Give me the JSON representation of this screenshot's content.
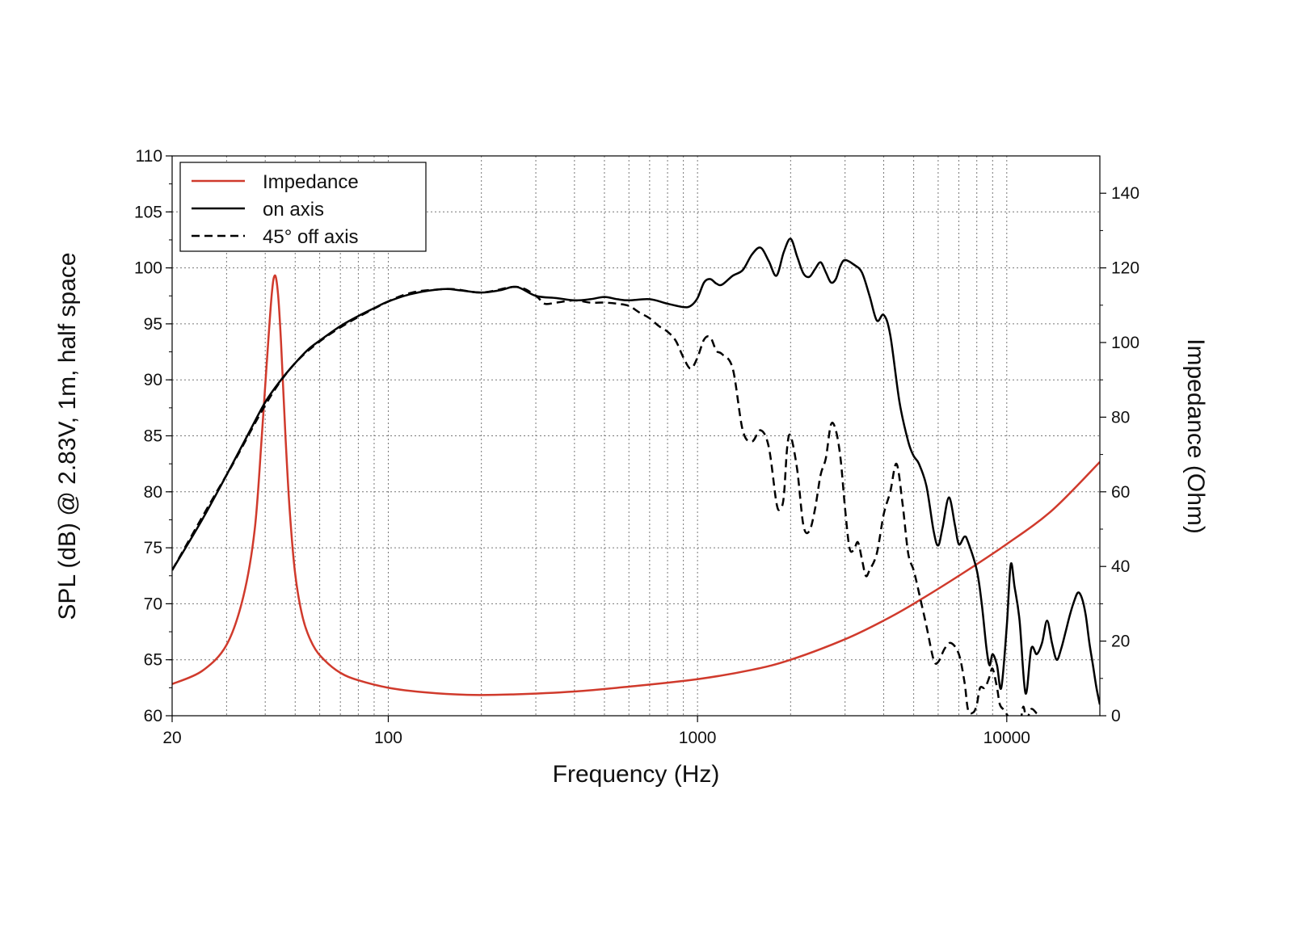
{
  "chart_data": {
    "type": "line",
    "xlabel": "Frequency (Hz)",
    "ylabel": "SPL (dB) @ 2.83V, 1m, half space",
    "y2label": "Impedance (Ohm)",
    "xscale": "log",
    "xlim": [
      20,
      20000
    ],
    "ylim": [
      60,
      110
    ],
    "y2lim": [
      0,
      150
    ],
    "grid": true,
    "legend_position": "top-left",
    "x_tick_labels": [
      "20",
      "100",
      "1000",
      "10000"
    ],
    "x_ticks": [
      20,
      100,
      1000,
      10000
    ],
    "y_ticks": [
      60,
      65,
      70,
      75,
      80,
      85,
      90,
      95,
      100,
      105,
      110
    ],
    "y_tick_labels": [
      "60",
      "65",
      "70",
      "75",
      "80",
      "85",
      "90",
      "95",
      "100",
      "105",
      "110"
    ],
    "y2_ticks": [
      0,
      20,
      40,
      60,
      80,
      100,
      120,
      140
    ],
    "y2_tick_labels": [
      "0",
      "20",
      "40",
      "60",
      "80",
      "100",
      "120",
      "140"
    ],
    "series": [
      {
        "name": "Impedance",
        "axis": "right",
        "color": "#d03a2c",
        "dash": "solid",
        "x": [
          20,
          25,
          30,
          34,
          37,
          39,
          40.5,
          42,
          43,
          44,
          45,
          46.5,
          48,
          50,
          53,
          57,
          62,
          70,
          80,
          100,
          130,
          180,
          250,
          400,
          600,
          1000,
          1500,
          2000,
          3000,
          4000,
          5000,
          7000,
          10000,
          14000,
          20000
        ],
        "y": [
          8.5,
          12,
          19,
          32,
          50,
          75,
          95,
          113,
          118,
          113,
          100,
          75,
          55,
          38,
          26,
          19,
          15,
          11.5,
          9.5,
          7.5,
          6.3,
          5.6,
          5.7,
          6.5,
          7.8,
          9.8,
          12.3,
          15,
          20.5,
          25.5,
          30,
          37.5,
          46,
          55,
          68
        ]
      },
      {
        "name": "on axis",
        "axis": "left",
        "color": "#000000",
        "dash": "solid",
        "x": [
          20,
          25,
          30,
          35,
          40,
          45,
          50,
          55,
          60,
          70,
          80,
          90,
          100,
          120,
          150,
          170,
          200,
          230,
          260,
          300,
          350,
          400,
          450,
          500,
          550,
          600,
          700,
          800,
          900,
          950,
          1000,
          1050,
          1100,
          1150,
          1200,
          1300,
          1400,
          1500,
          1600,
          1700,
          1800,
          1900,
          2000,
          2100,
          2200,
          2300,
          2400,
          2500,
          2600,
          2700,
          2800,
          2900,
          3000,
          3200,
          3400,
          3600,
          3800,
          4000,
          4200,
          4500,
          4800,
          5000,
          5200,
          5500,
          5800,
          6000,
          6200,
          6500,
          6800,
          7000,
          7300,
          7500,
          8000,
          8300,
          8600,
          8800,
          9000,
          9300,
          9600,
          10000,
          10300,
          10600,
          11000,
          11500,
          12000,
          12500,
          13000,
          13500,
          14000,
          14500,
          15000,
          15500,
          16000,
          16500,
          17000,
          17500,
          18000,
          18500,
          19000,
          19500,
          20000
        ],
        "y": [
          73,
          77.5,
          81.5,
          85,
          88,
          90,
          91.5,
          92.7,
          93.5,
          94.8,
          95.7,
          96.4,
          97,
          97.7,
          98.1,
          98,
          97.8,
          98,
          98.3,
          97.5,
          97.3,
          97.1,
          97.2,
          97.4,
          97.2,
          97.1,
          97.2,
          96.8,
          96.5,
          96.6,
          97.3,
          98.7,
          99,
          98.6,
          98.5,
          99.3,
          99.8,
          101.2,
          101.8,
          100.6,
          99.3,
          101.4,
          102.6,
          101,
          99.5,
          99.2,
          99.9,
          100.5,
          99.6,
          98.7,
          99,
          100.2,
          100.7,
          100.3,
          99.6,
          97.5,
          95.3,
          95.8,
          94,
          88,
          84.5,
          83.2,
          82.5,
          80.5,
          76.5,
          75.2,
          76.8,
          79.5,
          77,
          75.3,
          76,
          75.5,
          73,
          70,
          66,
          64.5,
          65.5,
          64.5,
          62.5,
          68,
          73.5,
          71.5,
          68.5,
          62,
          66,
          65.5,
          66.5,
          68.5,
          66.5,
          65,
          66,
          67.5,
          69,
          70.2,
          71,
          70.5,
          69,
          66.5,
          64.5,
          62.5,
          61
        ]
      },
      {
        "name": "45° off axis",
        "axis": "left",
        "color": "#000000",
        "dash": "dashed",
        "x": [
          20,
          30,
          50,
          100,
          150,
          200,
          260,
          300,
          320,
          350,
          400,
          450,
          500,
          550,
          600,
          650,
          700,
          750,
          800,
          850,
          900,
          950,
          1000,
          1050,
          1100,
          1150,
          1200,
          1300,
          1400,
          1500,
          1600,
          1700,
          1800,
          1850,
          1900,
          1950,
          2000,
          2100,
          2200,
          2300,
          2400,
          2500,
          2600,
          2700,
          2800,
          2900,
          3000,
          3100,
          3200,
          3300,
          3400,
          3500,
          3600,
          3800,
          4000,
          4200,
          4400,
          4600,
          4800,
          5000,
          5200,
          5500,
          5800,
          6000,
          6300,
          6600,
          7000,
          7300,
          7500,
          7800,
          8000,
          8200,
          8500,
          8800,
          9000,
          9300,
          9500,
          9800,
          10200,
          10600,
          11000,
          11300,
          11600,
          12000,
          12500
        ],
        "y": [
          73,
          81.5,
          91.5,
          97,
          98.1,
          97.8,
          98.3,
          97.5,
          96.8,
          96.9,
          97.1,
          96.9,
          96.9,
          96.8,
          96.6,
          96,
          95.5,
          94.8,
          94.3,
          93.5,
          92,
          91,
          92,
          93.6,
          93.8,
          92.6,
          92.3,
          91,
          85.5,
          84.5,
          85.5,
          84,
          79,
          78.5,
          79.5,
          84,
          85,
          82,
          77,
          76.5,
          78.5,
          81.5,
          83,
          86,
          85.5,
          83,
          78.5,
          75,
          74.8,
          75.5,
          74,
          72.5,
          73,
          74.5,
          78,
          80,
          82.5,
          79,
          74.5,
          73,
          71,
          68,
          65,
          64.8,
          66,
          66.5,
          65.5,
          63,
          60.5,
          60.3,
          61,
          62.5,
          62.5,
          63.5,
          64.2,
          62.5,
          61,
          60.5,
          59.8,
          59.5,
          59,
          60.8,
          59.7,
          60.6,
          60.2
        ]
      }
    ]
  }
}
